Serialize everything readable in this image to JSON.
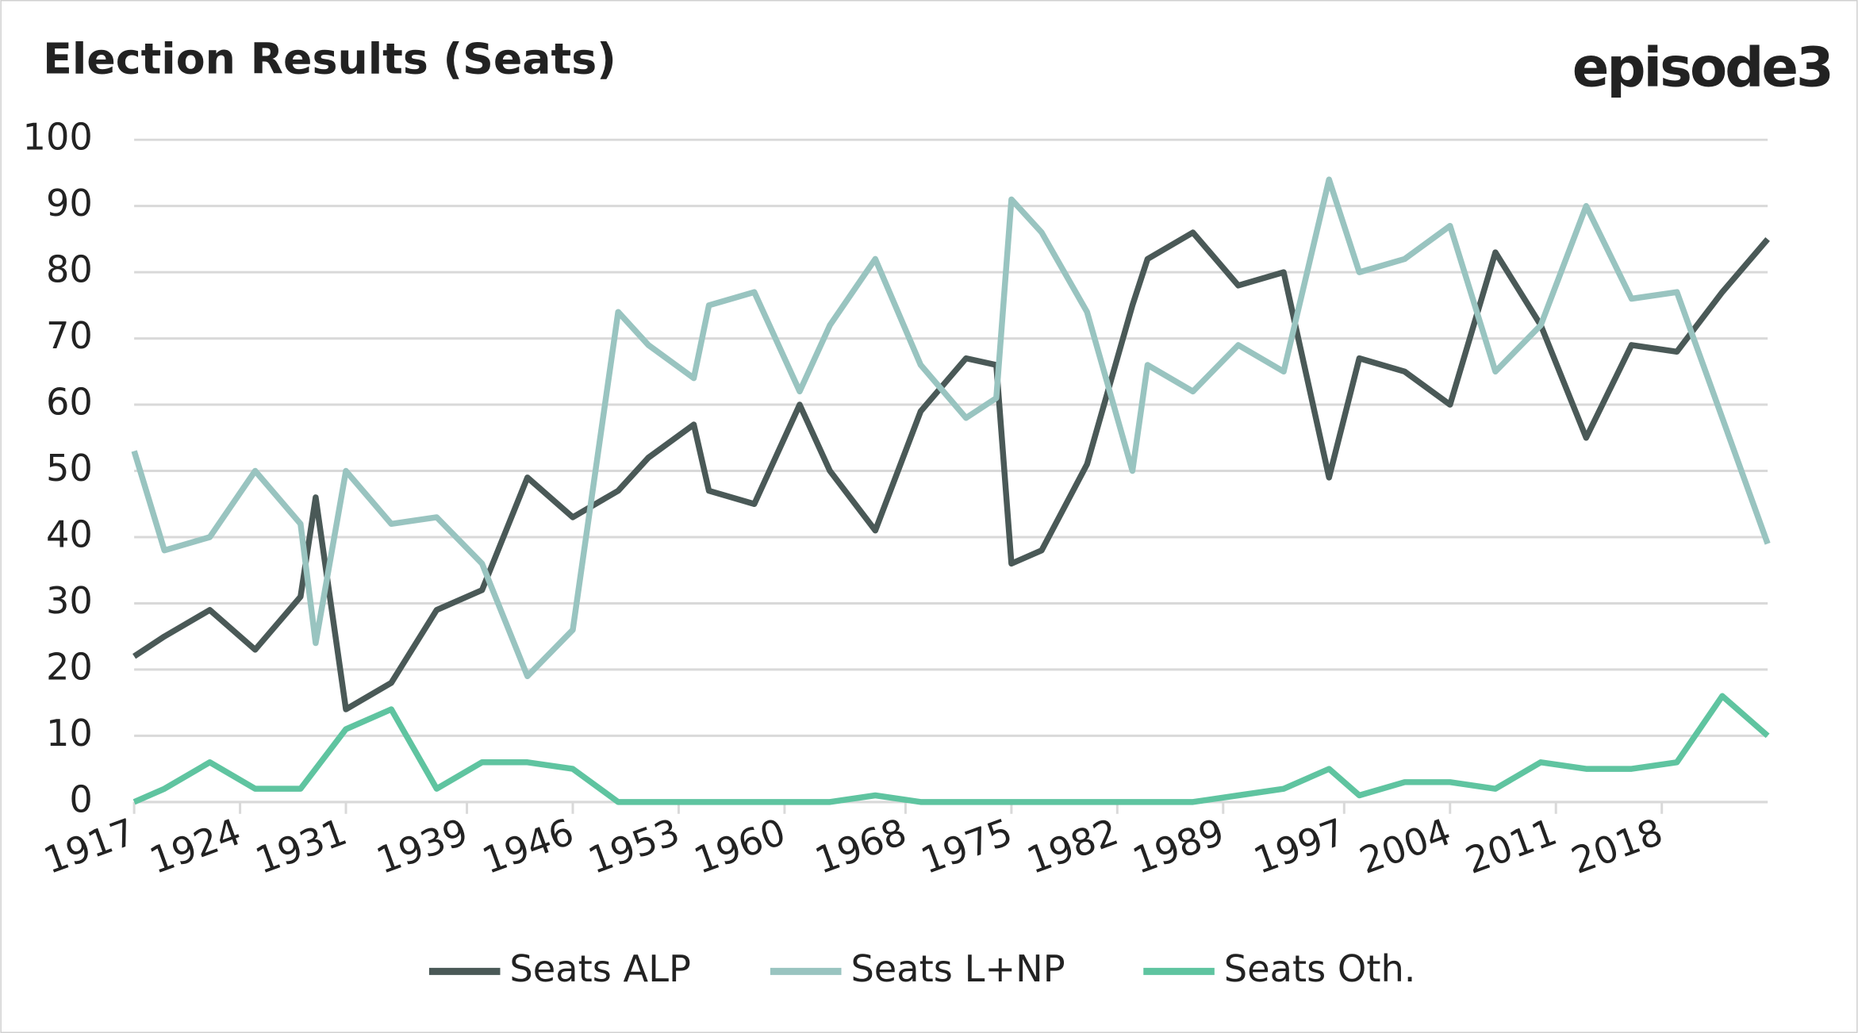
{
  "chart_data": {
    "type": "line",
    "title": "Election Results (Seats)",
    "logo": "episode3",
    "x": [
      1917,
      1919,
      1922,
      1925,
      1928,
      1929,
      1931,
      1934,
      1937,
      1940,
      1943,
      1946,
      1949,
      1951,
      1954,
      1955,
      1958,
      1961,
      1963,
      1966,
      1969,
      1972,
      1974,
      1975,
      1977,
      1980,
      1983,
      1984,
      1987,
      1990,
      1993,
      1996,
      1998,
      2001,
      2004,
      2007,
      2010,
      2013,
      2016,
      2019,
      2022,
      2025
    ],
    "series": [
      {
        "name": "Seats ALP",
        "color": "#4a5957",
        "values": [
          22,
          25,
          29,
          23,
          31,
          46,
          14,
          18,
          29,
          32,
          49,
          43,
          47,
          52,
          57,
          47,
          45,
          60,
          50,
          41,
          59,
          67,
          66,
          36,
          38,
          51,
          75,
          82,
          86,
          78,
          80,
          49,
          67,
          65,
          60,
          83,
          72,
          55,
          69,
          68,
          77,
          85
        ]
      },
      {
        "name": "Seats L+NP",
        "color": "#99c4c0",
        "values": [
          53,
          38,
          40,
          50,
          42,
          24,
          50,
          42,
          43,
          36,
          19,
          26,
          74,
          69,
          64,
          75,
          77,
          62,
          72,
          82,
          66,
          58,
          61,
          91,
          86,
          74,
          50,
          66,
          62,
          69,
          65,
          94,
          80,
          82,
          87,
          65,
          72,
          90,
          76,
          77,
          58,
          39
        ]
      },
      {
        "name": "Seats Oth.",
        "color": "#5fc4a0",
        "values": [
          0,
          2,
          6,
          2,
          2,
          5,
          11,
          14,
          2,
          6,
          6,
          5,
          0,
          0,
          0,
          0,
          0,
          0,
          0,
          1,
          0,
          0,
          0,
          0,
          0,
          0,
          0,
          0,
          0,
          1,
          2,
          5,
          1,
          3,
          3,
          2,
          6,
          5,
          5,
          6,
          16,
          10
        ]
      }
    ],
    "xlim": [
      1917,
      2025
    ],
    "xticks": [
      1917,
      1924,
      1931,
      1939,
      1946,
      1953,
      1960,
      1968,
      1975,
      1982,
      1989,
      1997,
      2004,
      2011,
      2018
    ],
    "ylim": [
      0,
      100
    ],
    "yticks": [
      0,
      10,
      20,
      30,
      40,
      50,
      60,
      70,
      80,
      90,
      100
    ],
    "grid": true,
    "legend": "bottom"
  }
}
